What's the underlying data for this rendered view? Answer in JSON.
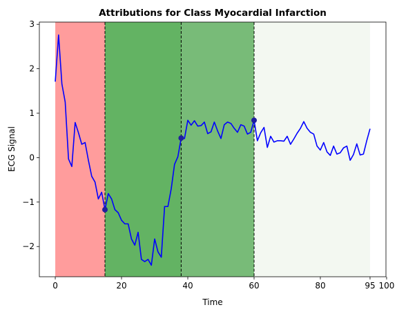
{
  "chart_data": {
    "type": "line",
    "title": "Attributions for Class Myocardial Infarction",
    "xlabel": "Time",
    "ylabel": "ECG Signal",
    "xlim": [
      -4.8,
      99.8
    ],
    "ylim": [
      -2.68,
      3.05
    ],
    "xticks": [
      0,
      20,
      40,
      60,
      80,
      95,
      100
    ],
    "yticks": [
      -2,
      -1,
      0,
      1,
      2,
      3
    ],
    "grid": false,
    "legend": "none",
    "regions": [
      {
        "start": 0,
        "end": 15,
        "color": "#ff9c9c"
      },
      {
        "start": 15,
        "end": 38,
        "color": "#63b363"
      },
      {
        "start": 38,
        "end": 60,
        "color": "#78bb78"
      },
      {
        "start": 60,
        "end": 95,
        "color": "#f3f8f1"
      }
    ],
    "boundaries": [
      15,
      38,
      60
    ],
    "markers": [
      {
        "x": 15,
        "y": -1.17
      },
      {
        "x": 38,
        "y": 0.44
      },
      {
        "x": 60,
        "y": 0.84
      }
    ],
    "series": [
      {
        "color": "#0000ff",
        "x": [
          0,
          1,
          2,
          3,
          4,
          5,
          6,
          7,
          8,
          9,
          10,
          11,
          12,
          13,
          14,
          15,
          16,
          17,
          18,
          19,
          20,
          21,
          22,
          23,
          24,
          25,
          26,
          27,
          28,
          29,
          30,
          31,
          32,
          33,
          34,
          35,
          36,
          37,
          38,
          39,
          40,
          41,
          42,
          43,
          44,
          45,
          46,
          47,
          48,
          49,
          50,
          51,
          52,
          53,
          54,
          55,
          56,
          57,
          58,
          59,
          60,
          61,
          62,
          63,
          64,
          65,
          66,
          67,
          68,
          69,
          70,
          71,
          72,
          73,
          74,
          75,
          76,
          77,
          78,
          79,
          80,
          81,
          82,
          83,
          84,
          85,
          86,
          87,
          88,
          89,
          90,
          91,
          92,
          93,
          94,
          95
        ],
        "values": [
          1.71,
          2.76,
          1.66,
          1.25,
          -0.03,
          -0.2,
          0.79,
          0.56,
          0.3,
          0.34,
          -0.06,
          -0.42,
          -0.55,
          -0.93,
          -0.78,
          -1.17,
          -0.81,
          -0.93,
          -1.17,
          -1.24,
          -1.41,
          -1.49,
          -1.49,
          -1.83,
          -1.97,
          -1.68,
          -2.29,
          -2.34,
          -2.29,
          -2.42,
          -1.83,
          -2.12,
          -2.24,
          -1.1,
          -1.1,
          -0.7,
          -0.15,
          0.02,
          0.44,
          0.43,
          0.84,
          0.73,
          0.83,
          0.71,
          0.72,
          0.8,
          0.54,
          0.58,
          0.8,
          0.6,
          0.43,
          0.74,
          0.8,
          0.77,
          0.66,
          0.57,
          0.74,
          0.71,
          0.53,
          0.57,
          0.84,
          0.38,
          0.56,
          0.68,
          0.23,
          0.48,
          0.35,
          0.38,
          0.38,
          0.37,
          0.48,
          0.3,
          0.42,
          0.55,
          0.66,
          0.81,
          0.66,
          0.57,
          0.53,
          0.26,
          0.17,
          0.34,
          0.13,
          0.05,
          0.26,
          0.08,
          0.11,
          0.22,
          0.26,
          -0.06,
          0.07,
          0.31,
          0.06,
          0.08,
          0.38,
          0.65
        ]
      }
    ]
  }
}
